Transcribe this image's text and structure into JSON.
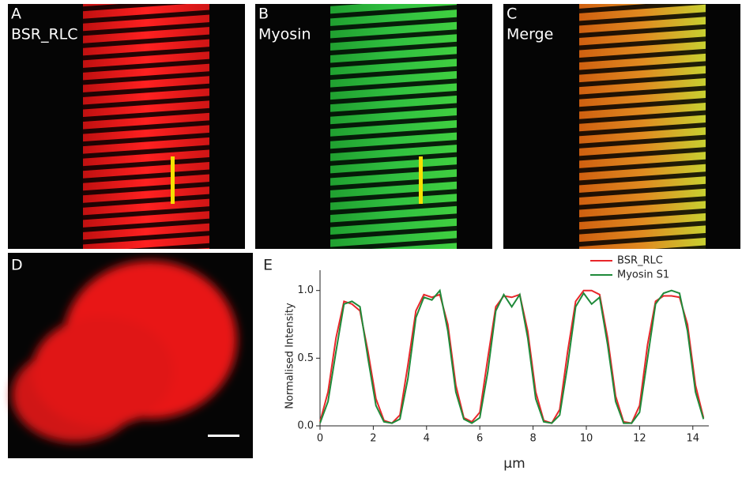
{
  "panels": [
    {
      "letter": "A",
      "label": "BSR_RLC"
    },
    {
      "letter": "B",
      "label": "Myosin"
    },
    {
      "letter": "C",
      "label": "Merge"
    },
    {
      "letter": "D"
    },
    {
      "letter": "E"
    }
  ],
  "chart_data": {
    "type": "line",
    "x_label": "μm",
    "y_label": "Normalised Intensity",
    "x": [
      0,
      0.3,
      0.6,
      0.9,
      1.2,
      1.5,
      1.8,
      2.1,
      2.4,
      2.7,
      3.0,
      3.3,
      3.6,
      3.9,
      4.2,
      4.5,
      4.8,
      5.1,
      5.4,
      5.7,
      6.0,
      6.3,
      6.6,
      6.9,
      7.2,
      7.5,
      7.8,
      8.1,
      8.4,
      8.7,
      9.0,
      9.3,
      9.6,
      9.9,
      10.2,
      10.5,
      10.8,
      11.1,
      11.4,
      11.7,
      12.0,
      12.3,
      12.6,
      12.9,
      13.2,
      13.5,
      13.8,
      14.1,
      14.4
    ],
    "series": [
      {
        "name": "BSR_RLC",
        "color": "#e8262a",
        "values": [
          0.03,
          0.25,
          0.65,
          0.92,
          0.9,
          0.85,
          0.55,
          0.2,
          0.04,
          0.02,
          0.08,
          0.45,
          0.85,
          0.97,
          0.95,
          0.97,
          0.75,
          0.3,
          0.06,
          0.03,
          0.1,
          0.5,
          0.88,
          0.96,
          0.95,
          0.97,
          0.7,
          0.25,
          0.04,
          0.02,
          0.12,
          0.55,
          0.92,
          1.0,
          1.0,
          0.97,
          0.65,
          0.22,
          0.03,
          0.02,
          0.15,
          0.6,
          0.92,
          0.96,
          0.96,
          0.95,
          0.75,
          0.3,
          0.06
        ]
      },
      {
        "name": "Myosin S1",
        "color": "#1f8a3a",
        "values": [
          0.02,
          0.18,
          0.55,
          0.9,
          0.92,
          0.88,
          0.5,
          0.15,
          0.03,
          0.02,
          0.05,
          0.35,
          0.8,
          0.95,
          0.93,
          1.0,
          0.7,
          0.25,
          0.05,
          0.02,
          0.06,
          0.4,
          0.85,
          0.97,
          0.88,
          0.97,
          0.65,
          0.2,
          0.03,
          0.02,
          0.08,
          0.45,
          0.88,
          0.98,
          0.9,
          0.95,
          0.6,
          0.18,
          0.02,
          0.02,
          0.1,
          0.5,
          0.9,
          0.98,
          1.0,
          0.98,
          0.7,
          0.25,
          0.05
        ]
      }
    ],
    "xlim": [
      0,
      14.6
    ],
    "xticks": [
      0,
      2,
      4,
      6,
      8,
      10,
      12,
      14
    ],
    "ylim": [
      0,
      1.15
    ],
    "yticks": [
      {
        "value": 0,
        "label": "0.0"
      },
      {
        "value": 0.5,
        "label": "0.5"
      },
      {
        "value": 1,
        "label": "1.0"
      }
    ],
    "legend": "top-right"
  }
}
